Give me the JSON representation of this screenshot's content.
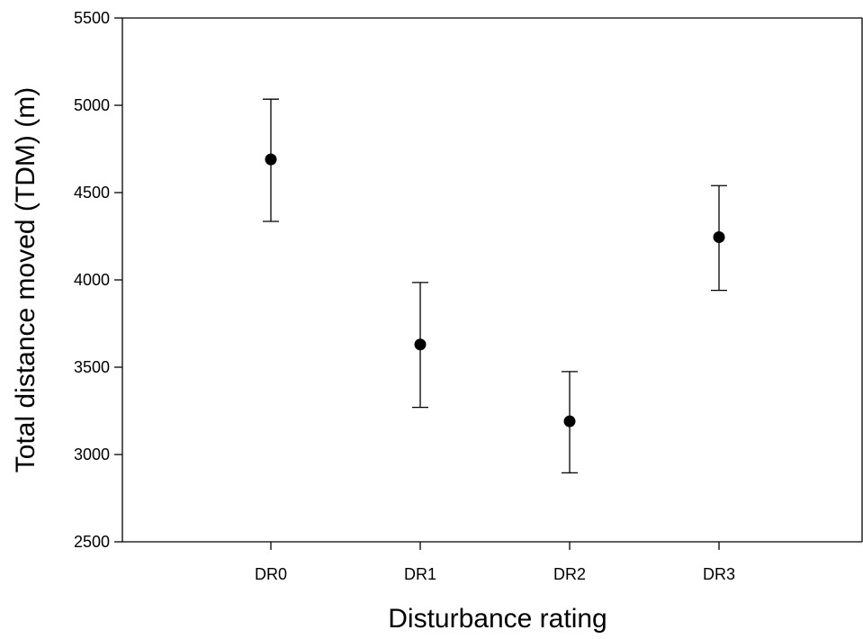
{
  "chart_data": {
    "type": "scatter",
    "title": "",
    "xlabel": "Disturbance rating",
    "ylabel": "Total distance moved (TDM) (m)",
    "categories": [
      "DR0",
      "DR1",
      "DR2",
      "DR3"
    ],
    "ylim": [
      2500,
      5500
    ],
    "yticks": [
      2500,
      3000,
      3500,
      4000,
      4500,
      5000,
      5500
    ],
    "grid": false,
    "legend": "none",
    "series": [
      {
        "values": [
          4690,
          3630,
          3190,
          4245
        ],
        "error_upper": [
          5035,
          3985,
          3475,
          4540
        ],
        "error_lower": [
          4335,
          3270,
          2895,
          3940
        ],
        "marker": "circle",
        "color": "#000000"
      }
    ]
  }
}
